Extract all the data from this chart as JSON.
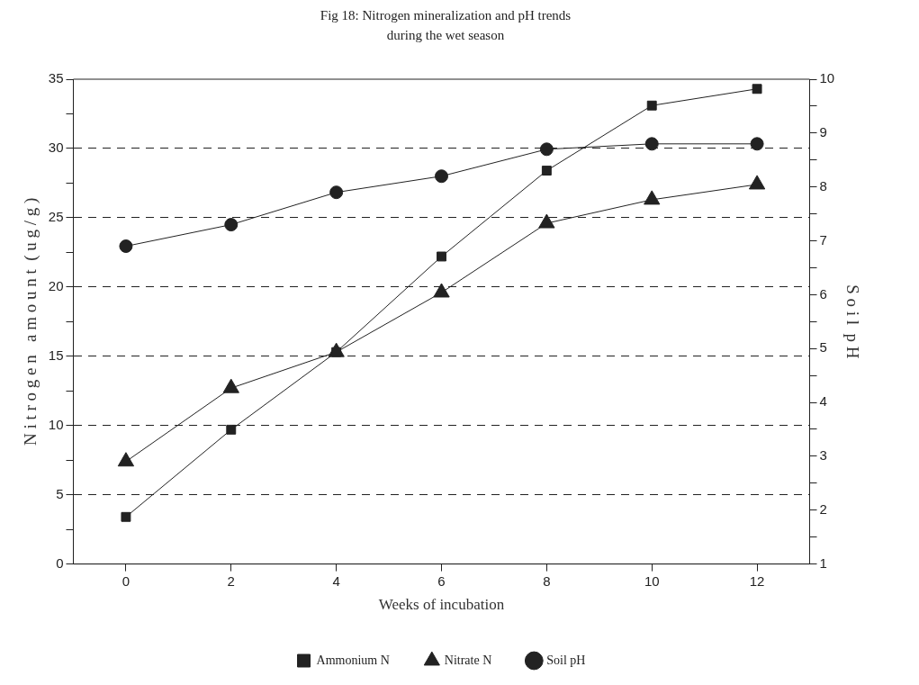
{
  "chart_data": {
    "type": "line",
    "title": "Fig 18: Nitrogen mineralization and pH trends during the wet season",
    "xlabel": "Weeks of incubation",
    "ylabel": "N i t r o g e n   a m o u n t  ( u g / g )",
    "y2label": "S o i l  p H",
    "x": [
      0,
      2,
      4,
      6,
      8,
      10,
      12
    ],
    "series": [
      {
        "name": "Ammonium N",
        "color": "#222222",
        "marker": "square",
        "values": [
          3.4,
          9.7,
          15.3,
          22.2,
          28.4,
          33.1,
          34.3
        ]
      },
      {
        "name": "Nitrate N",
        "color": "#222222",
        "marker": "triangle",
        "values": [
          7.4,
          12.7,
          15.3,
          19.6,
          24.6,
          26.3,
          27.4
        ]
      },
      {
        "name": "Soil pH",
        "color": "#222222",
        "marker": "circle",
        "axis": "y2",
        "values": [
          6.9,
          7.3,
          7.9,
          8.2,
          8.7,
          8.8,
          8.8
        ]
      }
    ],
    "xlim": [
      -1,
      13
    ],
    "xticks": [
      0,
      2,
      4,
      6,
      8,
      10,
      12
    ],
    "ylim": [
      0,
      35
    ],
    "yticks": [
      0,
      {
        "value": 2.5,
        "label": null
      },
      5,
      {
        "value": 7.5,
        "label": null
      },
      10,
      {
        "value": 12.5,
        "label": null
      },
      15,
      {
        "value": 17.5,
        "label": null
      },
      20,
      {
        "value": 22.5,
        "label": null
      },
      25,
      {
        "value": 27.5,
        "label": null
      },
      30,
      {
        "value": 32.5,
        "label": null
      },
      35
    ],
    "y2lim": [
      1,
      10
    ],
    "y2ticks": [
      1,
      {
        "value": 1.5,
        "label": null
      },
      2,
      {
        "value": 2.5,
        "label": null
      },
      3,
      {
        "value": 3.5,
        "label": null
      },
      4,
      {
        "value": 4.5,
        "label": null
      },
      5,
      {
        "value": 5.5,
        "label": null
      },
      6,
      {
        "value": 6.5,
        "label": null
      },
      7,
      {
        "value": 7.5,
        "label": null
      },
      8,
      {
        "value": 8.5,
        "label": null
      },
      9,
      {
        "value": 9.5,
        "label": null
      },
      10
    ],
    "grid": "y",
    "legend": "bottom",
    "line_style": "solid"
  }
}
